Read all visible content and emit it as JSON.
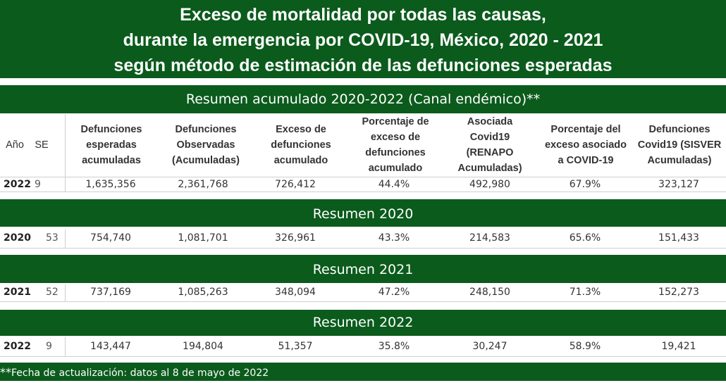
{
  "title": {
    "line1": "Exceso de mortalidad por todas las causas,",
    "line2": "durante la emergencia por COVID-19, México, 2020 - 2021",
    "line3": "según método de estimación de las defunciones esperadas"
  },
  "bands": {
    "acumulado": "Resumen acumulado 2020-2022 (Canal endémico)**",
    "r2020": "Resumen 2020",
    "r2021": "Resumen 2021",
    "r2022": "Resumen 2022"
  },
  "headers": {
    "anio": "Año",
    "se": "SE",
    "esperadas": [
      "Defunciones",
      "esperadas",
      "acumuladas"
    ],
    "observadas": [
      "Defunciones",
      "Observadas",
      "(Acumuladas)"
    ],
    "exceso": [
      "Exceso de",
      "defunciones",
      "acumulado"
    ],
    "porcentaje": [
      "Porcentaje de",
      "exceso de",
      "defunciones",
      "acumulado"
    ],
    "asociada": [
      "Asociada",
      "Covid19",
      "(RENAPO",
      "Acumuladas)"
    ],
    "pct_covid": [
      "Porcentaje del",
      "exceso asociado",
      "a COVID-19"
    ],
    "sisver": [
      "Defunciones",
      "Covid19 (SISVER",
      "Acumuladas)"
    ]
  },
  "rows": {
    "acumulado": {
      "anio": "2022",
      "se": "9",
      "esperadas": "1,635,356",
      "observadas": "2,361,768",
      "exceso": "726,412",
      "porcentaje": "44.4%",
      "asociada": "492,980",
      "pct_covid": "67.9%",
      "sisver": "323,127"
    },
    "r2020": {
      "anio": "2020",
      "se": "53",
      "esperadas": "754,740",
      "observadas": "1,081,701",
      "exceso": "326,961",
      "porcentaje": "43.3%",
      "asociada": "214,583",
      "pct_covid": "65.6%",
      "sisver": "151,433"
    },
    "r2021": {
      "anio": "2021",
      "se": "52",
      "esperadas": "737,169",
      "observadas": "1,085,263",
      "exceso": "348,094",
      "porcentaje": "47.2%",
      "asociada": "248,150",
      "pct_covid": "71.3%",
      "sisver": "152,273"
    },
    "r2022": {
      "anio": "2022",
      "se": "9",
      "esperadas": "143,447",
      "observadas": "194,804",
      "exceso": "51,357",
      "porcentaje": "35.8%",
      "asociada": "30,247",
      "pct_covid": "58.9%",
      "sisver": "19,421"
    }
  },
  "footer": {
    "stars": "**",
    "text": "Fecha de actualización: datos  al 8 de mayo de 2022"
  },
  "colors": {
    "brand_green": "#0b5b1c"
  }
}
